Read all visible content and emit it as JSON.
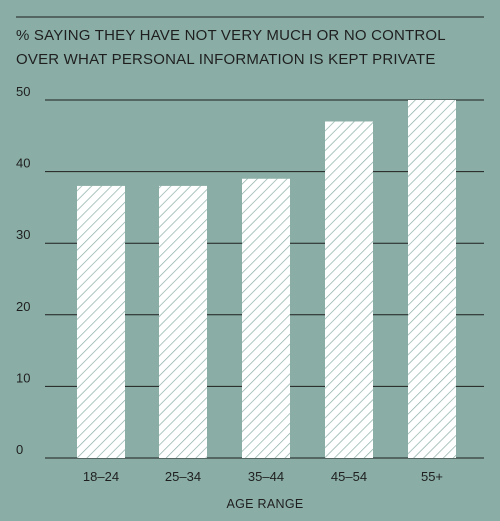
{
  "chart_data": {
    "type": "bar",
    "title_lines": [
      "% SAYING THEY HAVE NOT VERY MUCH OR NO CONTROL",
      "OVER WHAT PERSONAL INFORMATION IS KEPT PRIVATE"
    ],
    "xlabel": "AGE RANGE",
    "ylabel": "",
    "categories": [
      "18–24",
      "25–34",
      "35–44",
      "45–54",
      "55+"
    ],
    "values": [
      38,
      38,
      39,
      47,
      50
    ],
    "ylim": [
      0,
      50
    ],
    "yticks": [
      0,
      10,
      20,
      30,
      40,
      50
    ],
    "grid": true,
    "legend": "none"
  },
  "colors": {
    "background": "#8aaea6",
    "bar_fill": "#ffffff",
    "hatch": "#8aaea6",
    "text": "#1f1f1f"
  }
}
